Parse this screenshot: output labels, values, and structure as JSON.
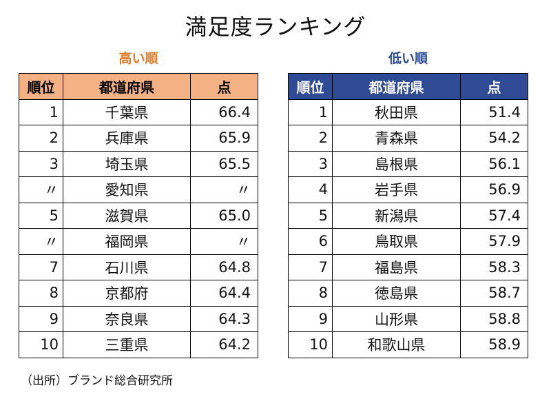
{
  "title": "満足度ランキング",
  "high": {
    "heading": "高い順",
    "columns": [
      "順位",
      "都道府県",
      "点"
    ],
    "rows": [
      {
        "rank": "1",
        "pref": "千葉県",
        "score": "66.4"
      },
      {
        "rank": "2",
        "pref": "兵庫県",
        "score": "65.9"
      },
      {
        "rank": "3",
        "pref": "埼玉県",
        "score": "65.5"
      },
      {
        "rank": "〃",
        "pref": "愛知県",
        "score": "〃"
      },
      {
        "rank": "5",
        "pref": "滋賀県",
        "score": "65.0"
      },
      {
        "rank": "〃",
        "pref": "福岡県",
        "score": "〃"
      },
      {
        "rank": "7",
        "pref": "石川県",
        "score": "64.8"
      },
      {
        "rank": "8",
        "pref": "京都府",
        "score": "64.4"
      },
      {
        "rank": "9",
        "pref": "奈良県",
        "score": "64.3"
      },
      {
        "rank": "10",
        "pref": "三重県",
        "score": "64.2"
      }
    ]
  },
  "low": {
    "heading": "低い順",
    "columns": [
      "順位",
      "都道府県",
      "点"
    ],
    "rows": [
      {
        "rank": "1",
        "pref": "秋田県",
        "score": "51.4"
      },
      {
        "rank": "2",
        "pref": "青森県",
        "score": "54.2"
      },
      {
        "rank": "3",
        "pref": "島根県",
        "score": "56.1"
      },
      {
        "rank": "4",
        "pref": "岩手県",
        "score": "56.9"
      },
      {
        "rank": "5",
        "pref": "新潟県",
        "score": "57.4"
      },
      {
        "rank": "6",
        "pref": "鳥取県",
        "score": "57.9"
      },
      {
        "rank": "7",
        "pref": "福島県",
        "score": "58.3"
      },
      {
        "rank": "8",
        "pref": "徳島県",
        "score": "58.7"
      },
      {
        "rank": "9",
        "pref": "山形県",
        "score": "58.8"
      },
      {
        "rank": "10",
        "pref": "和歌山県",
        "score": "58.9"
      }
    ]
  },
  "source": "（出所）ブランド総合研究所",
  "colors": {
    "high_header_bg": "#f4b183",
    "high_heading_text": "#e07b2c",
    "low_header_bg": "#2f4b95",
    "low_heading_text": "#2c4b97"
  }
}
